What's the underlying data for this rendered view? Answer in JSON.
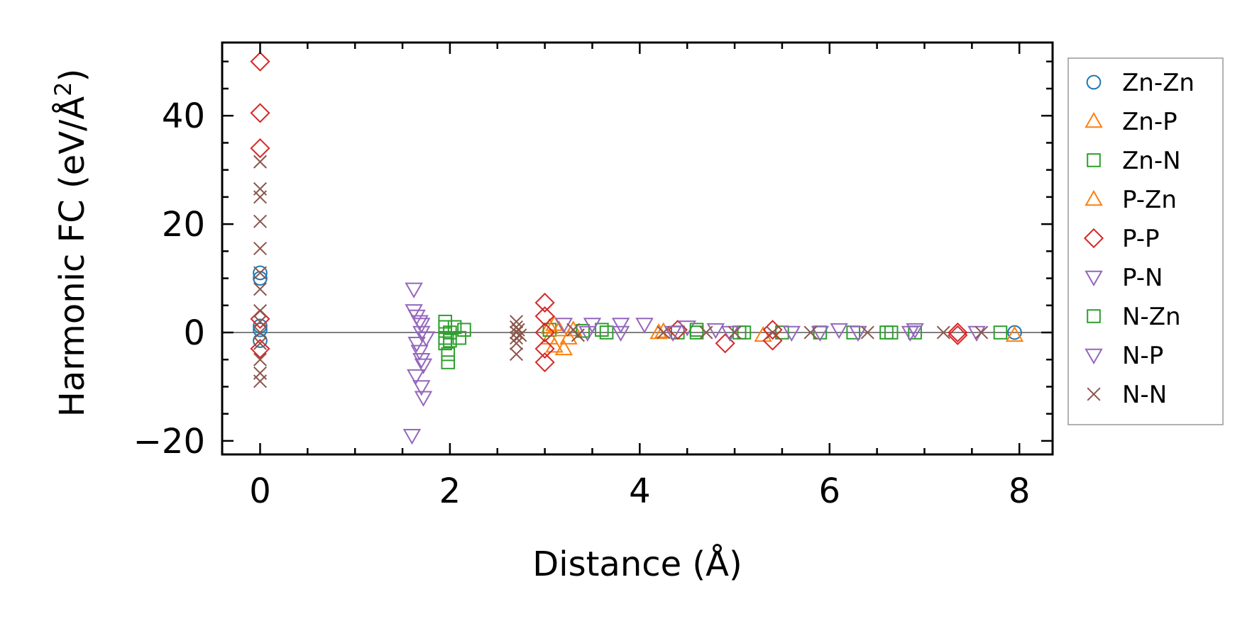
{
  "chart_data": {
    "type": "scatter",
    "title": "",
    "xlabel": "Distance (Å)",
    "ylabel": "Harmonic FC (eV/Å²)",
    "ylabel_base": "Harmonic FC (eV/Å",
    "ylabel_sup": "2",
    "ylabel_tail": ")",
    "xlim": [
      -0.4,
      8.35
    ],
    "ylim": [
      -22.5,
      53.5
    ],
    "xticks": [
      0,
      2,
      4,
      6,
      8
    ],
    "xtick_labels": [
      "0",
      "2",
      "4",
      "6",
      "8"
    ],
    "yticks": [
      -20,
      0,
      20,
      40
    ],
    "ytick_labels": [
      "−20",
      "0",
      "20",
      "40"
    ],
    "grid": false,
    "zero_line": true,
    "legend_position": "outside-right",
    "series": [
      {
        "name": "Zn-Zn",
        "marker": "circle",
        "color": "#1f77b4",
        "points": [
          [
            0,
            11
          ],
          [
            0,
            10
          ],
          [
            0,
            1.2
          ],
          [
            0,
            0.5
          ],
          [
            0,
            -1.5
          ],
          [
            7.95,
            0
          ]
        ]
      },
      {
        "name": "Zn-P",
        "marker": "triangle-up",
        "color": "#ff7f0e",
        "points": [
          [
            3.05,
            1
          ],
          [
            3.05,
            -1
          ],
          [
            3.1,
            -2.5
          ],
          [
            3.2,
            -3
          ],
          [
            3.3,
            0.5
          ],
          [
            4.2,
            0
          ],
          [
            5.3,
            -0.5
          ],
          [
            7.95,
            -0.5
          ]
        ]
      },
      {
        "name": "Zn-N",
        "marker": "square",
        "color": "#2ca02c",
        "points": [
          [
            1.95,
            2
          ],
          [
            1.95,
            1
          ],
          [
            1.95,
            -1
          ],
          [
            1.95,
            -2
          ],
          [
            1.98,
            -4
          ],
          [
            1.98,
            -5.5
          ],
          [
            2.05,
            1
          ],
          [
            2.1,
            -1
          ],
          [
            2.15,
            0.5
          ],
          [
            3.05,
            0.5
          ],
          [
            3.6,
            0.5
          ],
          [
            4.4,
            0
          ],
          [
            4.6,
            0.5
          ],
          [
            5.1,
            0
          ],
          [
            5.5,
            0
          ],
          [
            6.25,
            0
          ],
          [
            6.65,
            0
          ],
          [
            6.9,
            0
          ]
        ]
      },
      {
        "name": "P-Zn",
        "marker": "triangle-up",
        "color": "#ff7f0e",
        "points": [
          [
            3.1,
            1.5
          ],
          [
            3.15,
            0.5
          ],
          [
            3.25,
            -1
          ],
          [
            4.25,
            0.2
          ]
        ]
      },
      {
        "name": "P-P",
        "marker": "diamond",
        "color": "#d62728",
        "points": [
          [
            0,
            50
          ],
          [
            0,
            40.5
          ],
          [
            0,
            34
          ],
          [
            0,
            2.5
          ],
          [
            0,
            -3
          ],
          [
            3.0,
            5.5
          ],
          [
            3.0,
            3
          ],
          [
            3.0,
            0
          ],
          [
            3.0,
            -3
          ],
          [
            3.0,
            -5.5
          ],
          [
            4.4,
            0.5
          ],
          [
            4.9,
            -2
          ],
          [
            5.4,
            -1.5
          ],
          [
            5.4,
            0.5
          ],
          [
            7.35,
            0
          ],
          [
            7.35,
            -0.5
          ]
        ]
      },
      {
        "name": "P-N",
        "marker": "triangle-down",
        "color": "#9467bd",
        "points": [
          [
            1.62,
            8
          ],
          [
            1.62,
            4
          ],
          [
            1.65,
            3
          ],
          [
            1.68,
            2
          ],
          [
            1.7,
            0
          ],
          [
            1.65,
            -2
          ],
          [
            1.68,
            -3.5
          ],
          [
            1.7,
            -5
          ],
          [
            1.72,
            -6
          ],
          [
            1.64,
            -8
          ],
          [
            1.7,
            -10
          ],
          [
            1.72,
            -12
          ],
          [
            1.6,
            -19
          ],
          [
            3.45,
            0
          ],
          [
            3.8,
            1.5
          ],
          [
            4.5,
            1
          ],
          [
            4.8,
            0.5
          ],
          [
            5.6,
            0
          ],
          [
            6.1,
            0.5
          ],
          [
            6.85,
            0
          ],
          [
            7.55,
            0
          ]
        ]
      },
      {
        "name": "N-Zn",
        "marker": "square",
        "color": "#2ca02c",
        "points": [
          [
            2.0,
            0
          ],
          [
            2.0,
            -1.5
          ],
          [
            3.4,
            0.3
          ],
          [
            3.65,
            0
          ],
          [
            4.6,
            0
          ],
          [
            5.05,
            0
          ],
          [
            5.9,
            0
          ],
          [
            6.6,
            0
          ],
          [
            7.8,
            0
          ]
        ]
      },
      {
        "name": "N-P",
        "marker": "triangle-down",
        "color": "#9467bd",
        "points": [
          [
            1.7,
            1.5
          ],
          [
            1.75,
            -1
          ],
          [
            3.2,
            1.5
          ],
          [
            3.5,
            1.5
          ],
          [
            3.8,
            0
          ],
          [
            4.05,
            1.5
          ],
          [
            4.35,
            0
          ],
          [
            4.95,
            0
          ],
          [
            5.9,
            0
          ],
          [
            6.3,
            0
          ],
          [
            6.9,
            0.5
          ]
        ]
      },
      {
        "name": "N-N",
        "marker": "x",
        "color": "#8c564b",
        "points": [
          [
            0,
            31.5
          ],
          [
            0,
            26.5
          ],
          [
            0,
            25
          ],
          [
            0,
            20.5
          ],
          [
            0,
            15.5
          ],
          [
            0,
            11
          ],
          [
            0,
            8
          ],
          [
            0,
            4
          ],
          [
            0,
            2
          ],
          [
            0,
            0
          ],
          [
            0,
            -2
          ],
          [
            0,
            -5
          ],
          [
            0,
            -7.5
          ],
          [
            0,
            -9
          ],
          [
            2.7,
            2
          ],
          [
            2.7,
            1
          ],
          [
            2.7,
            0
          ],
          [
            2.7,
            -1
          ],
          [
            2.7,
            -2
          ],
          [
            2.7,
            -4
          ],
          [
            2.72,
            0.5
          ],
          [
            2.74,
            -0.5
          ],
          [
            3.3,
            0.5
          ],
          [
            3.35,
            -0.5
          ],
          [
            4.25,
            0
          ],
          [
            4.7,
            0
          ],
          [
            5.0,
            0
          ],
          [
            5.4,
            0
          ],
          [
            5.8,
            0
          ],
          [
            6.4,
            0
          ],
          [
            7.2,
            0
          ],
          [
            7.6,
            0
          ]
        ]
      }
    ]
  }
}
